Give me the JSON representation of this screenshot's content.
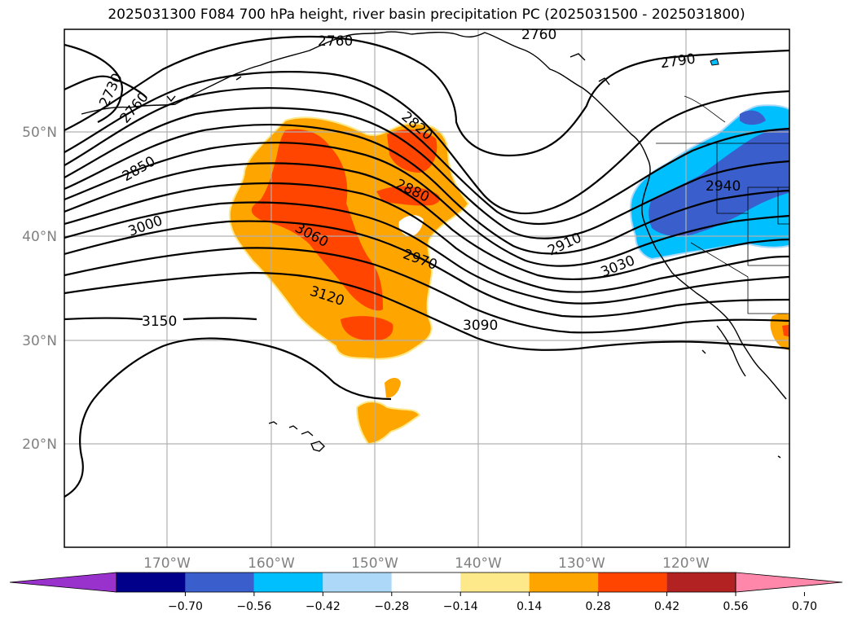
{
  "title": "2025031300 F084 700 hPa height, river basin precipitation PC (2025031500 - 2025031800)",
  "map": {
    "lat_labels": [
      "50°N",
      "40°N",
      "30°N",
      "20°N"
    ],
    "lon_labels": [
      "170°W",
      "160°W",
      "150°W",
      "140°W",
      "130°W",
      "120°W"
    ],
    "contour_labels": [
      "2760",
      "2760",
      "2730",
      "2760",
      "2790",
      "2820",
      "2850",
      "2880",
      "2910",
      "2940",
      "2970",
      "3000",
      "3030",
      "3060",
      "3090",
      "3120",
      "3150"
    ],
    "coastline_color": "#000000",
    "grid": true
  },
  "colorbar": {
    "ticks": [
      "−0.70",
      "−0.56",
      "−0.42",
      "−0.28",
      "−0.14",
      "0.14",
      "0.28",
      "0.42",
      "0.56",
      "0.70"
    ],
    "colors": [
      "#9932cc",
      "#00008b",
      "#3a5fcd",
      "#00bfff",
      "#add8f8",
      "#ffffff",
      "#fde88a",
      "#ffa500",
      "#ff4500",
      "#b22222",
      "#ff88aa"
    ]
  }
}
